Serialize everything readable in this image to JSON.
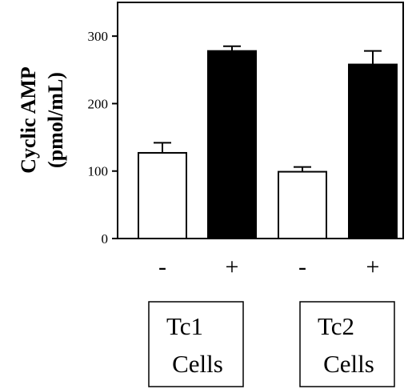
{
  "chart_data": {
    "type": "bar",
    "ylabel_line1": "Cyclic AMP",
    "ylabel_line2": "(pmol/mL)",
    "ylim": [
      0,
      350
    ],
    "yticks": [
      0,
      100,
      200,
      300
    ],
    "categories": [
      "-",
      "+",
      "-",
      "+"
    ],
    "values": [
      127,
      278,
      99,
      258
    ],
    "errors": [
      15,
      7,
      7,
      20
    ],
    "bar_fills": [
      "#ffffff",
      "#000000",
      "#ffffff",
      "#000000"
    ],
    "groups": [
      {
        "line1": "Tc1",
        "line2": "Cells"
      },
      {
        "line1": "Tc2",
        "line2": "Cells"
      }
    ],
    "grid": false
  }
}
